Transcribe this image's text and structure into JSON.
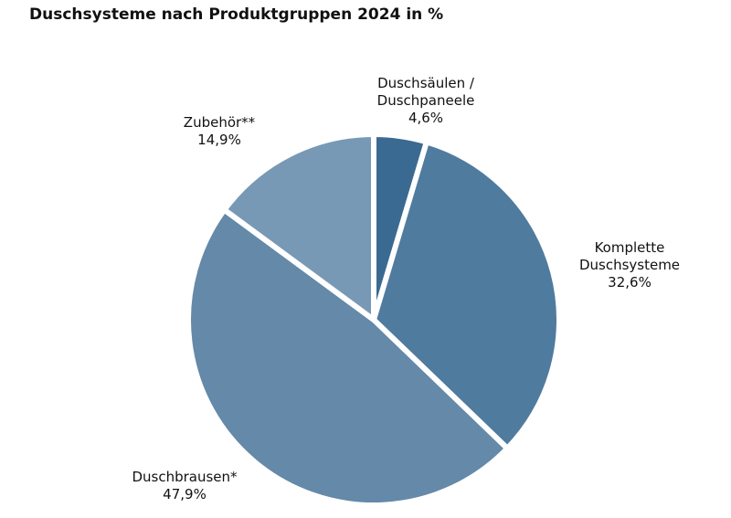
{
  "chart_data": {
    "type": "pie",
    "title": "Duschsysteme nach Produktgruppen 2024 in %",
    "slices": [
      {
        "label": [
          "Duschsäulen /",
          "Duschpaneele"
        ],
        "value_label": "4,6%",
        "value": 4.6,
        "color": "#3a6a91"
      },
      {
        "label": [
          "Komplette",
          "Duschsysteme"
        ],
        "value_label": "32,6%",
        "value": 32.6,
        "color": "#4f7b9e"
      },
      {
        "label": [
          "Duschbrausen*"
        ],
        "value_label": "47,9%",
        "value": 47.9,
        "color": "#6489a9"
      },
      {
        "label": [
          "Zubehör**"
        ],
        "value_label": "14,9%",
        "value": 14.9,
        "color": "#7899b5"
      }
    ]
  }
}
